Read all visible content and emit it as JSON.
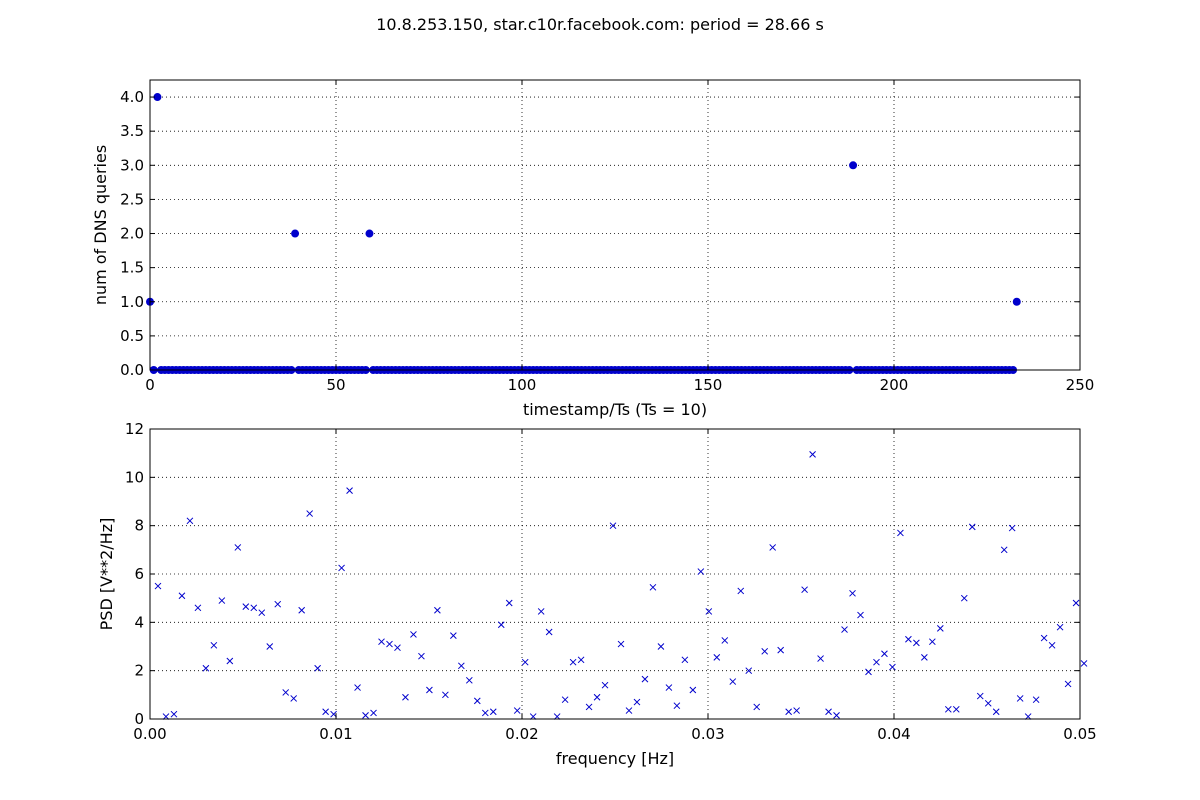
{
  "figure_title": "10.8.253.150, star.c10r.facebook.com: period = 28.66 s",
  "colors": {
    "marker": "#0000cc",
    "axis": "#000000",
    "grid": "#000000"
  },
  "chart_data": [
    {
      "type": "scatter",
      "marker": "filled-circle",
      "xlabel": "timestamp/Ts (Ts = 10)",
      "ylabel": "num of DNS queries",
      "xlim": [
        0,
        250
      ],
      "ylim": [
        0,
        4.25
      ],
      "xticks": [
        0,
        50,
        100,
        150,
        200,
        250
      ],
      "yticks": [
        0.0,
        0.5,
        1.0,
        1.5,
        2.0,
        2.5,
        3.0,
        3.5,
        4.0
      ],
      "xtick_labels": [
        "0",
        "50",
        "100",
        "150",
        "200",
        "250"
      ],
      "ytick_labels": [
        "0.0",
        "0.5",
        "1.0",
        "1.5",
        "2.0",
        "2.5",
        "3.0",
        "3.5",
        "4.0"
      ],
      "grid": true,
      "x_range": [
        0,
        233
      ],
      "baseline": 0,
      "points": [
        [
          0,
          1
        ],
        [
          2,
          4
        ],
        [
          39,
          2
        ],
        [
          59,
          2
        ],
        [
          189,
          3
        ],
        [
          233,
          1
        ]
      ]
    },
    {
      "type": "scatter",
      "marker": "x",
      "xlabel": "frequency [Hz]",
      "ylabel": "PSD [V**2/Hz]",
      "xlim": [
        0,
        0.05
      ],
      "ylim": [
        0,
        12
      ],
      "xticks": [
        0.0,
        0.01,
        0.02,
        0.03,
        0.04,
        0.05
      ],
      "yticks": [
        0,
        2,
        4,
        6,
        8,
        10,
        12
      ],
      "xtick_labels": [
        "0.00",
        "0.01",
        "0.02",
        "0.03",
        "0.04",
        "0.05"
      ],
      "ytick_labels": [
        "0",
        "2",
        "4",
        "6",
        "8",
        "10",
        "12"
      ],
      "grid": true,
      "x_start": 0.0004292,
      "x_step": 0.0004292,
      "y": [
        5.5,
        0.1,
        0.2,
        5.1,
        8.2,
        4.6,
        2.1,
        3.05,
        4.9,
        2.4,
        7.1,
        4.65,
        4.6,
        4.4,
        3.0,
        4.75,
        1.1,
        0.85,
        4.5,
        8.5,
        2.1,
        0.3,
        0.2,
        6.25,
        9.45,
        1.3,
        0.15,
        0.25,
        3.2,
        3.1,
        2.95,
        0.9,
        3.5,
        2.6,
        1.2,
        4.5,
        1.0,
        3.45,
        2.2,
        1.6,
        0.75,
        0.25,
        0.3,
        3.9,
        4.8,
        0.35,
        2.35,
        0.1,
        4.45,
        3.6,
        0.1,
        0.8,
        2.35,
        2.45,
        0.5,
        0.9,
        1.4,
        8.0,
        3.1,
        0.35,
        0.7,
        1.65,
        5.45,
        3.0,
        1.3,
        0.55,
        2.45,
        1.2,
        6.1,
        4.45,
        2.55,
        3.25,
        1.55,
        5.3,
        2.0,
        0.5,
        2.8,
        7.1,
        2.85,
        0.3,
        0.35,
        5.35,
        10.95,
        2.5,
        0.3,
        0.15,
        3.7,
        5.2,
        4.3,
        1.95,
        2.35,
        2.7,
        2.15,
        7.7,
        3.3,
        3.15,
        2.55,
        3.2,
        3.75,
        0.4,
        0.4,
        5.0,
        7.95,
        0.95,
        0.65,
        0.3,
        7.0,
        7.9,
        0.85,
        0.1,
        0.8,
        3.35,
        3.05,
        3.8,
        1.45,
        4.8,
        2.3
      ]
    }
  ]
}
